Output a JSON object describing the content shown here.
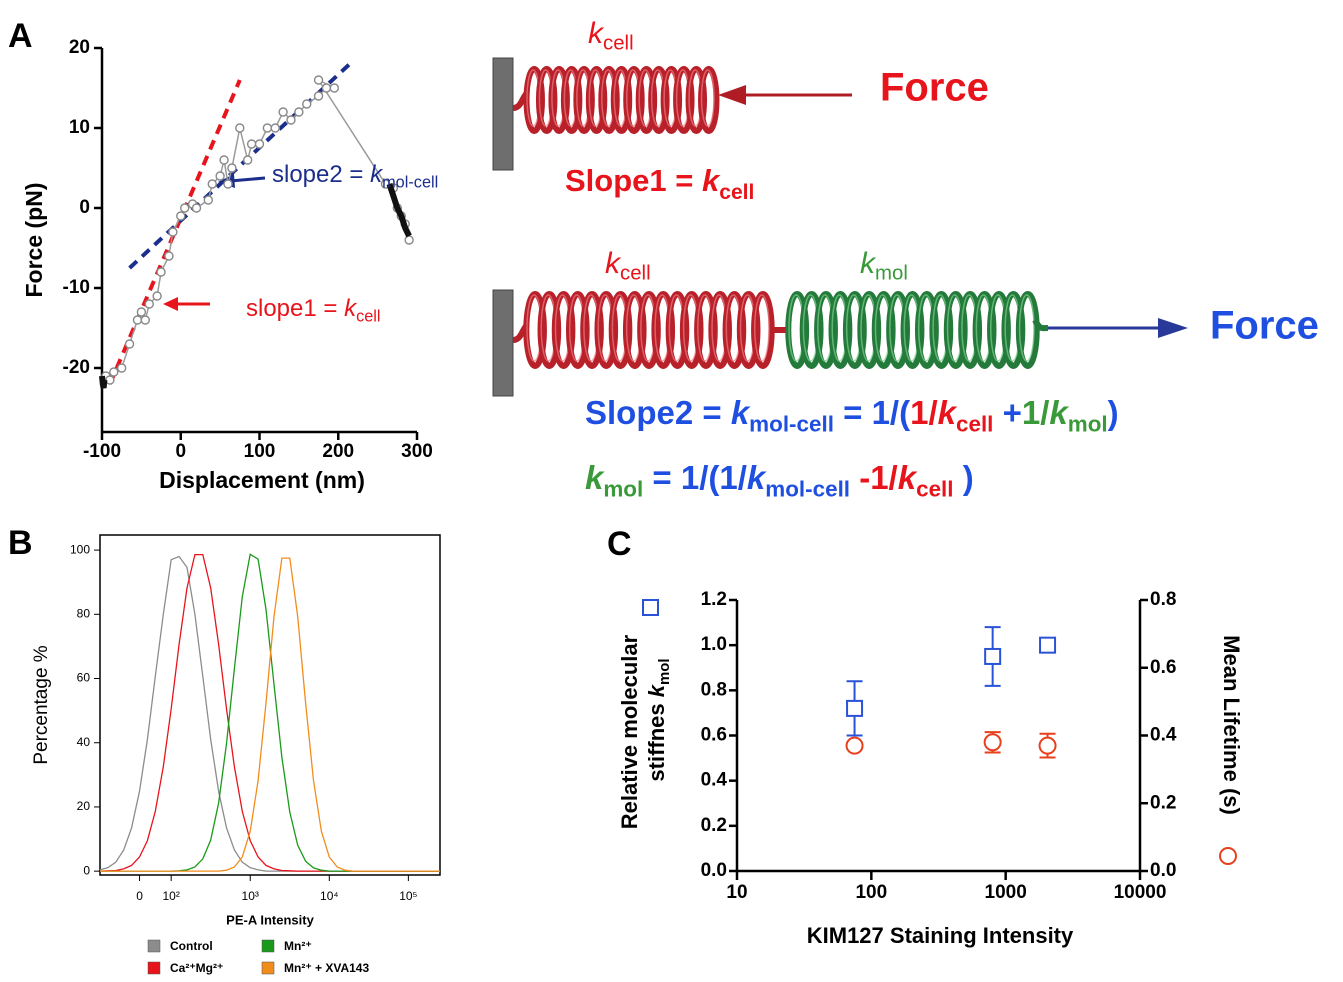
{
  "panel_labels": [
    "A",
    "B",
    "C"
  ],
  "chart_data": [
    {
      "type": "line",
      "xlabel": "Displacement (nm)",
      "ylabel": "Force (pN)",
      "xlim": [
        -100,
        300
      ],
      "ylim": [
        -28,
        20
      ],
      "xticks": [
        -100,
        0,
        100,
        200,
        300
      ],
      "yticks": [
        -20,
        -10,
        0,
        10,
        20
      ],
      "series": [
        {
          "color": "#9a9a9a",
          "style": "markers",
          "x": [
            -95,
            -90,
            -85,
            -75,
            -65,
            -55,
            -50,
            -45,
            -40,
            -30,
            -25,
            -15,
            -10,
            0,
            5,
            15,
            20,
            35,
            40,
            50,
            55,
            60,
            65,
            75,
            85,
            90,
            100,
            110,
            120,
            130,
            140,
            150,
            160,
            175,
            185,
            195,
            175,
            260,
            270,
            275,
            280,
            285,
            290
          ],
          "values": [
            -21,
            -21.5,
            -20.5,
            -20,
            -17,
            -14,
            -13,
            -14,
            -12,
            -11,
            -8,
            -6,
            -3,
            -1,
            0,
            0.5,
            0,
            1,
            3,
            4,
            6,
            3,
            5,
            10,
            6,
            8,
            8,
            10,
            10,
            12,
            11,
            12,
            13,
            14,
            15,
            15,
            16,
            3,
            2.5,
            0,
            -1,
            -2,
            -4
          ]
        },
        {
          "color": "#111111",
          "style": "thick",
          "x": [
            -100,
            -99,
            -98,
            -97
          ],
          "values": [
            -21,
            -22,
            -22.5,
            -21.5
          ]
        },
        {
          "color": "#111111",
          "style": "thick",
          "x": [
            265,
            270,
            275,
            280,
            285,
            290
          ],
          "values": [
            3,
            1.5,
            0,
            -1,
            -2.5,
            -3.5
          ]
        },
        {
          "color": "#e8141c",
          "style": "dashed",
          "x": [
            -90,
            75
          ],
          "values": [
            -22,
            16
          ]
        },
        {
          "color": "#1c2e8c",
          "style": "dashed",
          "x": [
            -65,
            220
          ],
          "values": [
            -7.5,
            18.5
          ]
        }
      ],
      "annotations": [
        {
          "text": "slope2 = ",
          "var": "k",
          "sub": "mol-cell",
          "color": "#1c2e8c"
        },
        {
          "text": "slope1 = ",
          "var": "k",
          "sub": "cell",
          "color": "#e8141c"
        }
      ]
    },
    {
      "type": "line",
      "xlabel": "PE-A Intensity",
      "ylabel": "Percentage %",
      "xlim": [
        1.1,
        5.4
      ],
      "ylim": [
        -1.2,
        104.7
      ],
      "xticks": [
        {
          "value": 1.6,
          "label": "0"
        },
        {
          "value": 2,
          "label": "10²"
        },
        {
          "value": 3,
          "label": "10³"
        },
        {
          "value": 4,
          "label": "10⁴"
        },
        {
          "value": 5,
          "label": "10⁵"
        }
      ],
      "yticks": [
        0,
        20,
        40,
        60,
        80,
        100
      ],
      "series": [
        {
          "name": "Control",
          "color": "#8c8c8c",
          "x": [
            1.1,
            1.2,
            1.3,
            1.4,
            1.5,
            1.6,
            1.7,
            1.8,
            1.9,
            2.0,
            2.1,
            2.2,
            2.3,
            2.4,
            2.5,
            2.6,
            2.7,
            2.8,
            2.9,
            3.0,
            3.1,
            3.2,
            3.3,
            3.4,
            3.5,
            3.6,
            3.7,
            3.8,
            3.9,
            4.0,
            4.1,
            4.2,
            4.3,
            4.4,
            5.4
          ],
          "values": [
            0.4,
            1.1,
            2.8,
            6.6,
            13.5,
            24.9,
            41,
            60.7,
            80,
            97,
            98,
            94.6,
            80,
            60.7,
            41,
            24.9,
            13.5,
            6.6,
            2.8,
            1.1,
            0.4,
            0,
            0,
            0,
            0,
            0,
            0,
            0,
            0,
            0,
            0,
            0,
            0,
            0,
            0
          ]
        },
        {
          "name": "Ca²⁺Mg²⁺",
          "color": "#e8141c",
          "x": [
            1.1,
            1.2,
            1.3,
            1.4,
            1.5,
            1.6,
            1.7,
            1.8,
            1.9,
            2.0,
            2.1,
            2.2,
            2.3,
            2.4,
            2.5,
            2.6,
            2.7,
            2.8,
            2.9,
            3.0,
            3.1,
            3.2,
            3.3,
            3.4,
            3.5,
            3.6,
            3.7,
            3.8,
            3.9,
            4.0,
            4.1,
            4.2,
            4.3,
            4.4,
            5.4
          ],
          "values": [
            0,
            0.1,
            0.2,
            0.7,
            1.8,
            4.4,
            9.5,
            18.6,
            32.5,
            50.6,
            70.7,
            88.2,
            98.6,
            98.6,
            88.2,
            70.7,
            50.6,
            32.5,
            18.6,
            9.5,
            4.4,
            1.8,
            0.7,
            0.2,
            0.1,
            0,
            0,
            0,
            0,
            0,
            0,
            0,
            0,
            0,
            0
          ]
        },
        {
          "name": "Mn²⁺",
          "color": "#1a9a1a",
          "x": [
            1.1,
            1.2,
            1.3,
            1.4,
            1.5,
            1.6,
            1.7,
            1.8,
            1.9,
            2.0,
            2.1,
            2.2,
            2.3,
            2.4,
            2.5,
            2.6,
            2.7,
            2.8,
            2.9,
            3.0,
            3.1,
            3.2,
            3.3,
            3.4,
            3.5,
            3.6,
            3.7,
            3.8,
            3.9,
            4.0,
            4.1,
            4.2,
            4.3,
            4.4,
            5.4
          ],
          "values": [
            0,
            0,
            0,
            0,
            0,
            0,
            0,
            0,
            0,
            0,
            0.1,
            0.4,
            1.3,
            3.8,
            9.7,
            21.2,
            39.7,
            63.1,
            85.5,
            98.7,
            97.2,
            81.5,
            58.2,
            35.4,
            18.4,
            8.1,
            3.1,
            1.0,
            0.3,
            0,
            0,
            0,
            0,
            0,
            0
          ]
        },
        {
          "name": "Mn²⁺ + XVA143",
          "color": "#f28c1c",
          "x": [
            1.1,
            1.2,
            1.3,
            1.4,
            1.5,
            1.6,
            1.7,
            1.8,
            1.9,
            2.0,
            2.1,
            2.2,
            2.3,
            2.4,
            2.5,
            2.6,
            2.7,
            2.8,
            2.9,
            3.0,
            3.1,
            3.2,
            3.3,
            3.4,
            3.5,
            3.6,
            3.7,
            3.8,
            3.9,
            4.0,
            4.1,
            4.2,
            4.3,
            4.4,
            5.4
          ],
          "values": [
            0,
            0,
            0,
            0,
            0,
            0,
            0,
            0,
            0,
            0,
            0,
            0,
            0,
            0,
            0,
            0,
            0.3,
            1.3,
            4.4,
            12.4,
            28.2,
            52.4,
            79.3,
            97.5,
            97.5,
            79.3,
            52.4,
            28.2,
            12.4,
            4.4,
            1.3,
            0.3,
            0,
            0,
            0
          ]
        }
      ]
    },
    {
      "type": "scatter",
      "xlabel": "KIM127 Staining Intensity",
      "ylabel": {
        "line1": "Relative molecular",
        "text": "stiffnes ",
        "var": "k",
        "sub": "mol"
      },
      "y2label": "Mean Lifetime (s)",
      "xscale": "log",
      "xlim": [
        10,
        10000
      ],
      "ylim": [
        0,
        1.2
      ],
      "y2lim": [
        0,
        0.8
      ],
      "xticks": [
        10,
        100,
        1000,
        10000
      ],
      "yticks": [
        {
          "value": 0,
          "label": "0.0"
        },
        0.2,
        0.4,
        0.6,
        0.8,
        {
          "value": 1,
          "label": "1.0"
        },
        1.2
      ],
      "y2ticks": [
        {
          "value": 0,
          "label": "0.0"
        },
        0.2,
        0.4,
        0.6,
        0.8
      ],
      "series": [
        {
          "color": "#2a52d6",
          "marker": "square",
          "x": [
            75,
            800,
            2050
          ],
          "values": [
            0.72,
            0.95,
            1.0
          ],
          "errors": [
            0.12,
            0.13,
            0
          ]
        },
        {
          "color": "#e8401c",
          "marker": "circle",
          "axis": "y2",
          "x": [
            75,
            800,
            2050
          ],
          "values": [
            0.37,
            0.38,
            0.37
          ],
          "errors": [
            0.01,
            0.03,
            0.035
          ]
        }
      ]
    }
  ],
  "diagram": {
    "spring1_label": {
      "var": "k",
      "sub": "cell"
    },
    "force1": "Force",
    "slope1": {
      "text": "Slope1 = ",
      "var": "k",
      "sub": "cell"
    },
    "spring2_label": {
      "var": "k",
      "sub": "cell"
    },
    "spring3_label": {
      "var": "k",
      "sub": "mol"
    },
    "force2": "Force",
    "formula1": [
      {
        "text": "Slope2 = ",
        "color": "#1f4fe0"
      },
      {
        "text": "k",
        "sub": "mol-cell",
        "color": "#1f4fe0"
      },
      {
        "text": " = 1/(",
        "color": "#1f4fe0"
      },
      {
        "text": "1/",
        "color": "#e8141c"
      },
      {
        "text": "k",
        "sub": "cell",
        "color": "#e8141c"
      },
      {
        "text": " +",
        "color": "#1f4fe0"
      },
      {
        "text": "1/",
        "color": "#3a9a3a"
      },
      {
        "text": "k",
        "sub": "mol",
        "color": "#3a9a3a"
      },
      {
        "text": ")",
        "color": "#1f4fe0"
      }
    ],
    "formula2": [
      {
        "text": "k",
        "sub": "mol",
        "color": "#3a9a3a"
      },
      {
        "text": " = 1/(1/",
        "color": "#1f4fe0"
      },
      {
        "text": "k",
        "sub": "mol-cell",
        "color": "#1f4fe0"
      },
      {
        "text": " -1/",
        "color": "#e8141c"
      },
      {
        "text": "k",
        "sub": "cell",
        "color": "#e8141c"
      },
      {
        "text": " )",
        "color": "#1f4fe0"
      }
    ]
  }
}
